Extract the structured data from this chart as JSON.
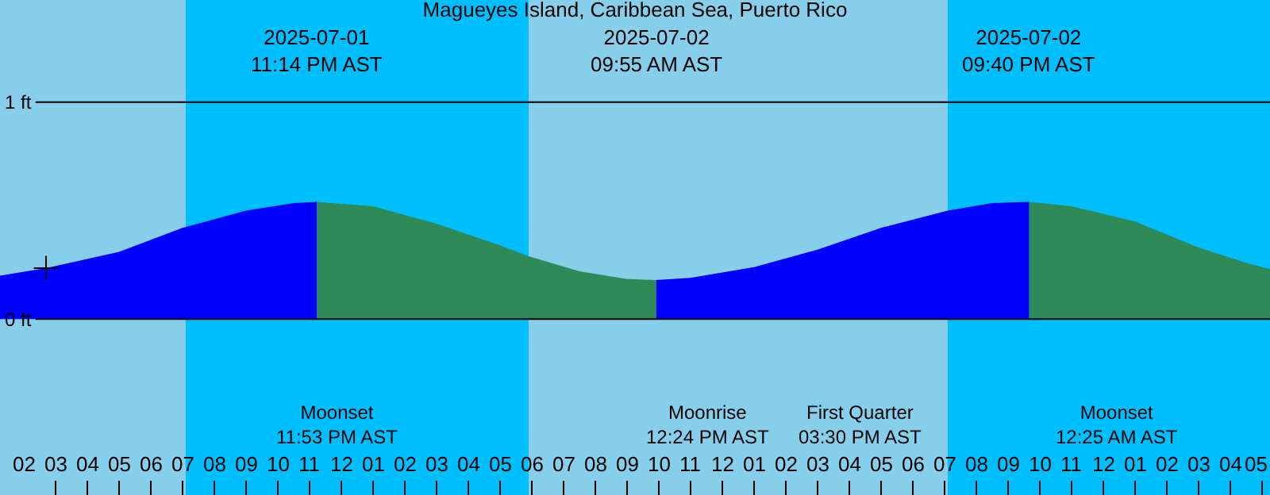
{
  "chart_data": {
    "type": "area",
    "title": "Magueyes Island, Caribbean Sea, Puerto Rico",
    "xlim": [
      "2025-07-01T13:15",
      "2025-07-03T05:15"
    ],
    "ylim": [
      -0.81,
      1.47
    ],
    "yticks": [
      {
        "value": 0,
        "label": "0 ft"
      },
      {
        "value": 1,
        "label": "1 ft"
      }
    ],
    "xticks": [
      {
        "value": "2025-07-01T14:00",
        "label": "02"
      },
      {
        "value": "2025-07-01T15:00",
        "label": "03"
      },
      {
        "value": "2025-07-01T16:00",
        "label": "04"
      },
      {
        "value": "2025-07-01T17:00",
        "label": "05"
      },
      {
        "value": "2025-07-01T18:00",
        "label": "06"
      },
      {
        "value": "2025-07-01T19:00",
        "label": "07"
      },
      {
        "value": "2025-07-01T20:00",
        "label": "08"
      },
      {
        "value": "2025-07-01T21:00",
        "label": "09"
      },
      {
        "value": "2025-07-01T22:00",
        "label": "10"
      },
      {
        "value": "2025-07-01T23:00",
        "label": "11"
      },
      {
        "value": "2025-07-02T00:00",
        "label": "12"
      },
      {
        "value": "2025-07-02T01:00",
        "label": "01"
      },
      {
        "value": "2025-07-02T02:00",
        "label": "02"
      },
      {
        "value": "2025-07-02T03:00",
        "label": "03"
      },
      {
        "value": "2025-07-02T04:00",
        "label": "04"
      },
      {
        "value": "2025-07-02T05:00",
        "label": "05"
      },
      {
        "value": "2025-07-02T06:00",
        "label": "06"
      },
      {
        "value": "2025-07-02T07:00",
        "label": "07"
      },
      {
        "value": "2025-07-02T08:00",
        "label": "08"
      },
      {
        "value": "2025-07-02T09:00",
        "label": "09"
      },
      {
        "value": "2025-07-02T10:00",
        "label": "10"
      },
      {
        "value": "2025-07-02T11:00",
        "label": "11"
      },
      {
        "value": "2025-07-02T12:00",
        "label": "12"
      },
      {
        "value": "2025-07-02T13:00",
        "label": "01"
      },
      {
        "value": "2025-07-02T14:00",
        "label": "02"
      },
      {
        "value": "2025-07-02T15:00",
        "label": "03"
      },
      {
        "value": "2025-07-02T16:00",
        "label": "04"
      },
      {
        "value": "2025-07-02T17:00",
        "label": "05"
      },
      {
        "value": "2025-07-02T18:00",
        "label": "06"
      },
      {
        "value": "2025-07-02T19:00",
        "label": "07"
      },
      {
        "value": "2025-07-02T20:00",
        "label": "08"
      },
      {
        "value": "2025-07-02T21:00",
        "label": "09"
      },
      {
        "value": "2025-07-02T22:00",
        "label": "10"
      },
      {
        "value": "2025-07-02T23:00",
        "label": "11"
      },
      {
        "value": "2025-07-03T00:00",
        "label": "12"
      },
      {
        "value": "2025-07-03T01:00",
        "label": "01"
      },
      {
        "value": "2025-07-03T02:00",
        "label": "02"
      },
      {
        "value": "2025-07-03T03:00",
        "label": "03"
      },
      {
        "value": "2025-07-03T04:00",
        "label": "04"
      },
      {
        "value": "2025-07-03T05:00",
        "label": "05"
      }
    ],
    "grid": "y",
    "bands": [
      {
        "axis": "x",
        "from": "2025-07-01T13:15",
        "to": "2025-07-01T19:06",
        "color": "#87ceeb"
      },
      {
        "axis": "x",
        "from": "2025-07-01T19:06",
        "to": "2025-07-02T05:54",
        "color": "#00bfff"
      },
      {
        "axis": "x",
        "from": "2025-07-02T05:54",
        "to": "2025-07-02T19:06",
        "color": "#87ceeb"
      },
      {
        "axis": "x",
        "from": "2025-07-02T19:06",
        "to": "2025-07-03T05:15",
        "color": "#00bfff"
      }
    ],
    "series": [
      {
        "color": "#0000ff",
        "x": [
          "2025-07-01T13:15",
          "2025-07-01T14:42",
          "2025-07-01T17:00",
          "2025-07-01T19:00",
          "2025-07-01T21:00",
          "2025-07-01T22:30",
          "2025-07-01T23:14"
        ],
        "values": [
          0.2,
          0.235,
          0.31,
          0.42,
          0.5,
          0.535,
          0.54
        ]
      },
      {
        "color": "#2e8b57",
        "x": [
          "2025-07-01T23:14",
          "2025-07-02T01:00",
          "2025-07-02T03:00",
          "2025-07-02T05:00",
          "2025-07-02T05:54",
          "2025-07-02T07:30",
          "2025-07-02T09:00",
          "2025-07-02T09:55"
        ],
        "values": [
          0.54,
          0.52,
          0.44,
          0.34,
          0.29,
          0.22,
          0.185,
          0.18
        ]
      },
      {
        "color": "#0000ff",
        "x": [
          "2025-07-02T09:55",
          "2025-07-02T11:00",
          "2025-07-02T13:00",
          "2025-07-02T15:00",
          "2025-07-02T17:00",
          "2025-07-02T19:06",
          "2025-07-02T20:30",
          "2025-07-02T21:40"
        ],
        "values": [
          0.18,
          0.19,
          0.24,
          0.32,
          0.42,
          0.5,
          0.535,
          0.54
        ]
      },
      {
        "color": "#2e8b57",
        "x": [
          "2025-07-02T21:40",
          "2025-07-02T23:00",
          "2025-07-03T01:00",
          "2025-07-03T03:00",
          "2025-07-03T04:30",
          "2025-07-03T05:15"
        ],
        "values": [
          0.54,
          0.52,
          0.45,
          0.33,
          0.26,
          0.23
        ]
      },
      {
        "type": "scatter",
        "marker": "cross",
        "color": "#000000",
        "x": [
          "2025-07-01T14:42"
        ],
        "values": [
          0.235
        ]
      }
    ],
    "annotations": [
      "2025-07-01\n11:14 PM AST",
      "2025-07-02\n09:55 AM AST",
      "2025-07-02\n09:40 PM AST",
      "Moonset\n11:53 PM AST",
      "Moonrise\n12:24 PM AST",
      "First Quarter\n03:30 PM AST",
      "Moonset\n12:25 AM AST"
    ]
  }
}
